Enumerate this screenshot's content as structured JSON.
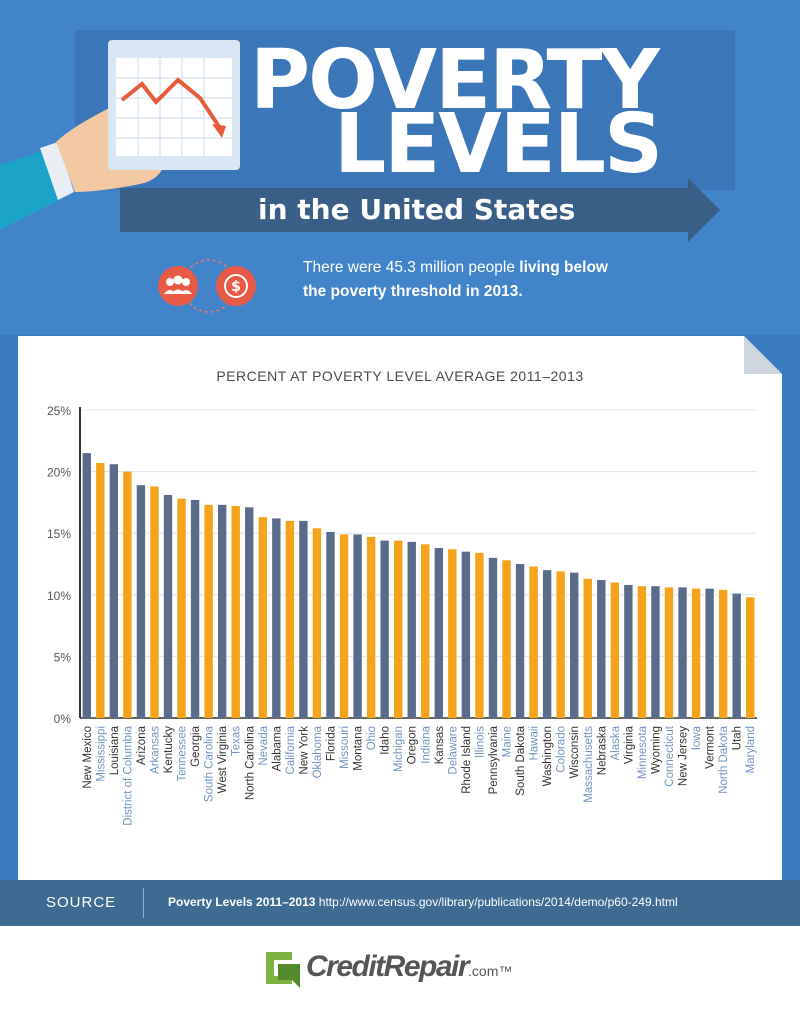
{
  "header": {
    "title_line1": "POVERTY",
    "title_line2": "LEVELS",
    "subtitle": "in the United States",
    "stat_text_plain": "There were 45.3 million people ",
    "stat_text_highlight": "living below",
    "stat_text_line2": "the poverty threshold in 2013.",
    "icons": [
      "chart-down-icon",
      "people-group-icon",
      "dollar-coin-icon"
    ]
  },
  "colors": {
    "background_blue": "#3b7bbf",
    "bar_slate": "#5b6b8c",
    "bar_orange": "#f5a31a",
    "source_band": "#3f6a91",
    "label_dark": "#333333",
    "label_blue": "#6f93c4"
  },
  "chart_data": {
    "type": "bar",
    "title": "PERCENT AT POVERTY LEVEL AVERAGE 2011–2013",
    "xlabel": "",
    "ylabel": "",
    "ylim": [
      0,
      25
    ],
    "yticks": [
      "0%",
      "5%",
      "10%",
      "15%",
      "20%",
      "25%"
    ],
    "grid": true,
    "categories": [
      "New Mexico",
      "Mississippi",
      "Louisiana",
      "District of Columbia",
      "Arizona",
      "Arkansas",
      "Kentucky",
      "Tennessee",
      "Georgia",
      "South Carolina",
      "West Virginia",
      "Texas",
      "North Carolina",
      "Nevada",
      "Alabama",
      "California",
      "New York",
      "Oklahoma",
      "Florida",
      "Missouri",
      "Montana",
      "Ohio",
      "Idaho",
      "Michigan",
      "Oregon",
      "Indiana",
      "Kansas",
      "Delaware",
      "Rhode Island",
      "Illinois",
      "Pennsylvania",
      "Maine",
      "South Dakota",
      "Hawaii",
      "Washington",
      "Colorado",
      "Wisconsin",
      "Massachusetts",
      "Nebraska",
      "Alaska",
      "Virginia",
      "Minnesota",
      "Wyoming",
      "Connecticut",
      "New Jersey",
      "Iowa",
      "Vermont",
      "North Dakota",
      "Utah",
      "Maryland"
    ],
    "values": [
      21.5,
      20.7,
      20.6,
      20.0,
      18.9,
      18.8,
      18.1,
      17.8,
      17.7,
      17.3,
      17.3,
      17.2,
      17.1,
      16.3,
      16.2,
      16.0,
      16.0,
      15.4,
      15.1,
      14.9,
      14.9,
      14.7,
      14.4,
      14.4,
      14.3,
      14.1,
      13.8,
      13.7,
      13.5,
      13.4,
      13.0,
      12.8,
      12.5,
      12.3,
      12.0,
      11.9,
      11.8,
      11.3,
      11.2,
      11.0,
      10.8,
      10.7,
      10.7,
      10.6,
      10.6,
      10.5,
      10.5,
      10.4,
      10.1,
      9.8
    ],
    "bar_colors": [
      "#5b6b8c",
      "#f5a31a"
    ]
  },
  "source": {
    "label": "SOURCE",
    "title": "Poverty Levels 2011–2013",
    "url": "http://www.census.gov/library/publications/2014/demo/p60-249.html"
  },
  "logo": {
    "brand": "CreditRepair",
    "suffix": ".com",
    "tm": "™"
  }
}
